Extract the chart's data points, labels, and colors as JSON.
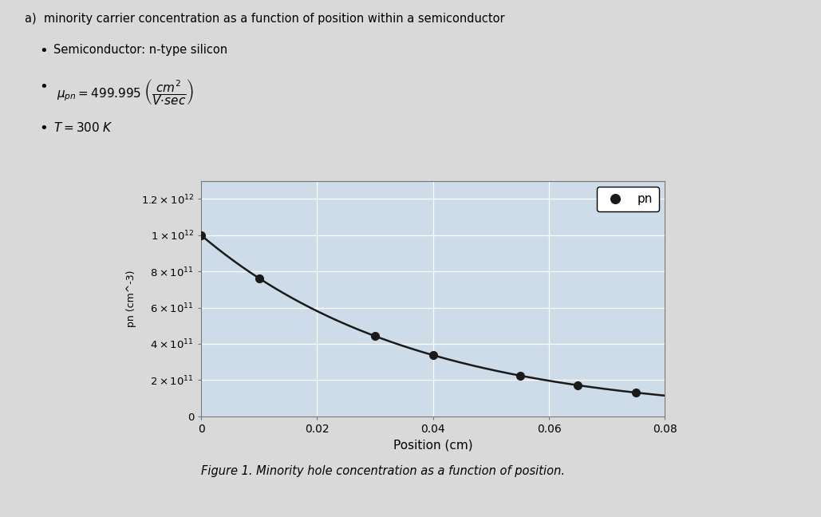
{
  "title_line1": "a)  minority carrier concentration as a function of position within a semiconductor",
  "bullet1": "Semiconductor: n-type silicon",
  "legend_label": "pn",
  "figure_caption": "Figure 1. Minority hole concentration as a function of position.",
  "plot_bg_color": "#cddce8",
  "page_bg": "#d9d9d9",
  "ytick_vals": [
    0,
    200000000000.0,
    400000000000.0,
    600000000000.0,
    800000000000.0,
    1000000000000.0,
    1200000000000.0
  ],
  "xtick_vals": [
    0,
    0.02,
    0.04,
    0.06,
    0.08
  ],
  "ylim": [
    0,
    1300000000000.0
  ],
  "xlim": [
    0,
    0.08
  ],
  "highlight_color": "#f0e020",
  "marker_color": "#1a1a1a",
  "line_color": "#1a1a1a",
  "marker_size": 7,
  "pn0": 1000000000000.0,
  "x_pts": [
    0.0,
    0.01,
    0.03,
    0.04,
    0.055,
    0.065,
    0.075
  ],
  "L": 0.0368
}
